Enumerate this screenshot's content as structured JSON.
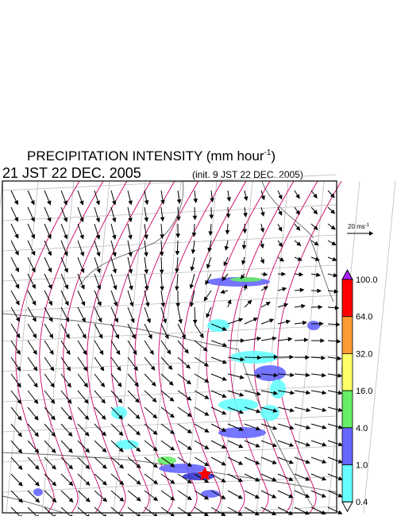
{
  "header": {
    "title": "PRECIPITATION INTENSITY (mm hour",
    "title_exponent": "-1",
    "title_close": ")",
    "valid_time": "21 JST 22 DEC. 2005",
    "init_time": "(init. 9 JST 22 DEC. 2005)"
  },
  "wind_scale": {
    "label": "20 ms",
    "exponent": "-1"
  },
  "colorbar": {
    "levels": [
      {
        "label": "100.0",
        "color": "#ff0000"
      },
      {
        "label": "64.0",
        "color": "#ff9933"
      },
      {
        "label": "32.0",
        "color": "#ffff66"
      },
      {
        "label": "16.0",
        "color": "#66ee66"
      },
      {
        "label": "4.0",
        "color": "#6666ff"
      },
      {
        "label": "1.0",
        "color": "#66ffff"
      },
      {
        "label": "0.4",
        "color": "#ffffff"
      }
    ],
    "over_color": "#aa22ff"
  }
}
